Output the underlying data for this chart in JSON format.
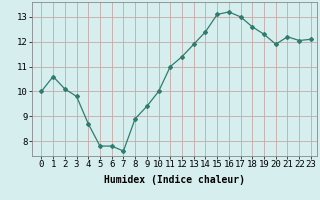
{
  "x": [
    0,
    1,
    2,
    3,
    4,
    5,
    6,
    7,
    8,
    9,
    10,
    11,
    12,
    13,
    14,
    15,
    16,
    17,
    18,
    19,
    20,
    21,
    22,
    23
  ],
  "y": [
    10.0,
    10.6,
    10.1,
    9.8,
    8.7,
    7.8,
    7.8,
    7.6,
    8.9,
    9.4,
    10.0,
    11.0,
    11.4,
    11.9,
    12.4,
    13.1,
    13.2,
    13.0,
    12.6,
    12.3,
    11.9,
    12.2,
    12.05,
    12.1
  ],
  "line_color": "#2e7d6e",
  "marker": "D",
  "marker_size": 2,
  "bg_color": "#d6eeee",
  "grid_color": "#c8a8a8",
  "xlabel": "Humidex (Indice chaleur)",
  "ylim": [
    7.4,
    13.6
  ],
  "yticks": [
    8,
    9,
    10,
    11,
    12,
    13
  ],
  "xticks": [
    0,
    1,
    2,
    3,
    4,
    5,
    6,
    7,
    8,
    9,
    10,
    11,
    12,
    13,
    14,
    15,
    16,
    17,
    18,
    19,
    20,
    21,
    22,
    23
  ],
  "xlabel_fontsize": 7,
  "tick_fontsize": 6.5
}
